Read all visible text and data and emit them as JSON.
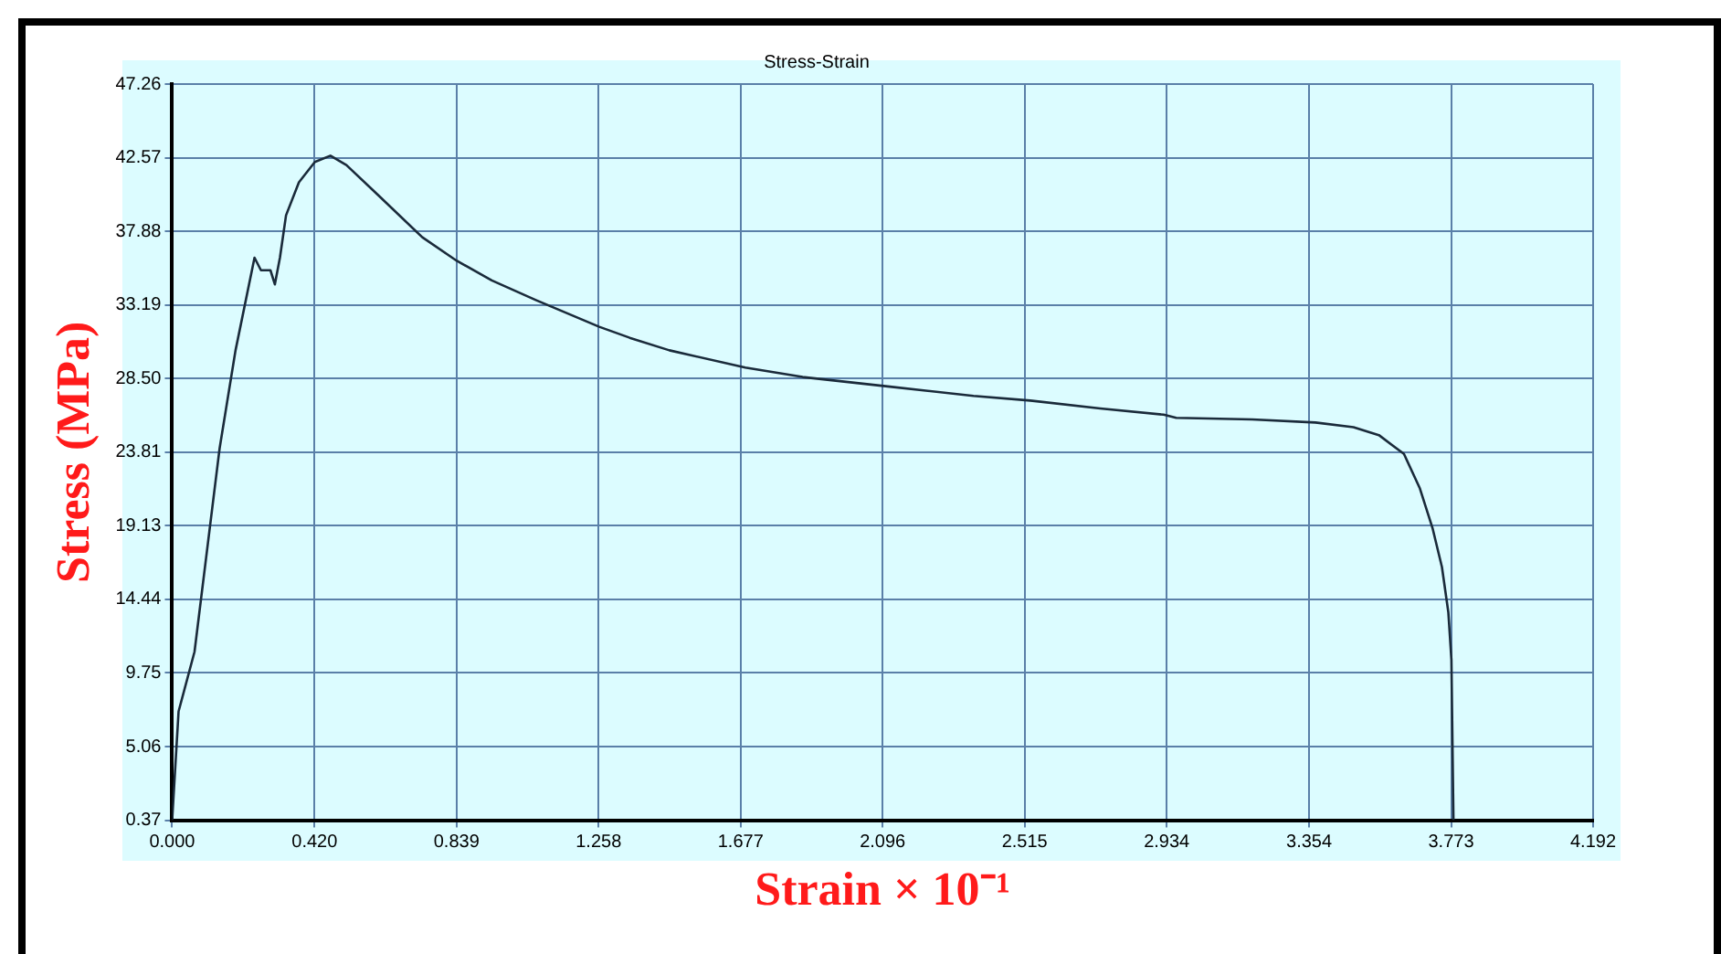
{
  "chart_data": {
    "type": "line",
    "title": "Stress-Strain",
    "xlabel": "Strain × 10⁻¹",
    "ylabel": "Stress (MPa)",
    "x": [
      0,
      0.019,
      0.066,
      0.14,
      0.187,
      0.243,
      0.262,
      0.29,
      0.303,
      0.318,
      0.336,
      0.374,
      0.421,
      0.467,
      0.514,
      0.607,
      0.738,
      0.84,
      0.943,
      1.073,
      1.26,
      1.35,
      1.467,
      1.691,
      1.86,
      2.111,
      2.364,
      2.532,
      2.738,
      2.925,
      2.962,
      3.186,
      3.373,
      3.485,
      3.56,
      3.634,
      3.681,
      3.718,
      3.746,
      3.765,
      3.774,
      3.78
    ],
    "series": [
      {
        "color": "#1a2a3a",
        "values": [
          0.37,
          7.3,
          11.1,
          24.05,
          30.3,
          36.2,
          35.4,
          35.4,
          34.5,
          36.2,
          38.9,
          41.0,
          42.3,
          42.7,
          42.1,
          40.2,
          37.5,
          36.0,
          34.75,
          33.5,
          31.8,
          31.1,
          30.3,
          29.2,
          28.6,
          28.0,
          27.4,
          27.1,
          26.6,
          26.2,
          26.0,
          25.9,
          25.7,
          25.4,
          24.9,
          23.7,
          21.5,
          19.0,
          16.5,
          13.6,
          10.6,
          0.37
        ]
      }
    ],
    "xlim": [
      0,
      4.192
    ],
    "xticks": [
      {
        "value": 0,
        "label": "0.000"
      },
      {
        "value": 0.42,
        "label": "0.420"
      },
      0.839,
      1.258,
      1.677,
      2.096,
      2.515,
      2.934,
      3.354,
      3.773,
      4.192
    ],
    "ylim": [
      0.37,
      47.26
    ],
    "yticks": [
      0.37,
      5.06,
      9.75,
      14.44,
      19.13,
      23.81,
      {
        "value": 28.5,
        "label": "28.50"
      },
      33.19,
      37.88,
      42.57,
      47.26
    ],
    "grid": true,
    "legend": false,
    "marker": "none",
    "line_style": "solid"
  }
}
